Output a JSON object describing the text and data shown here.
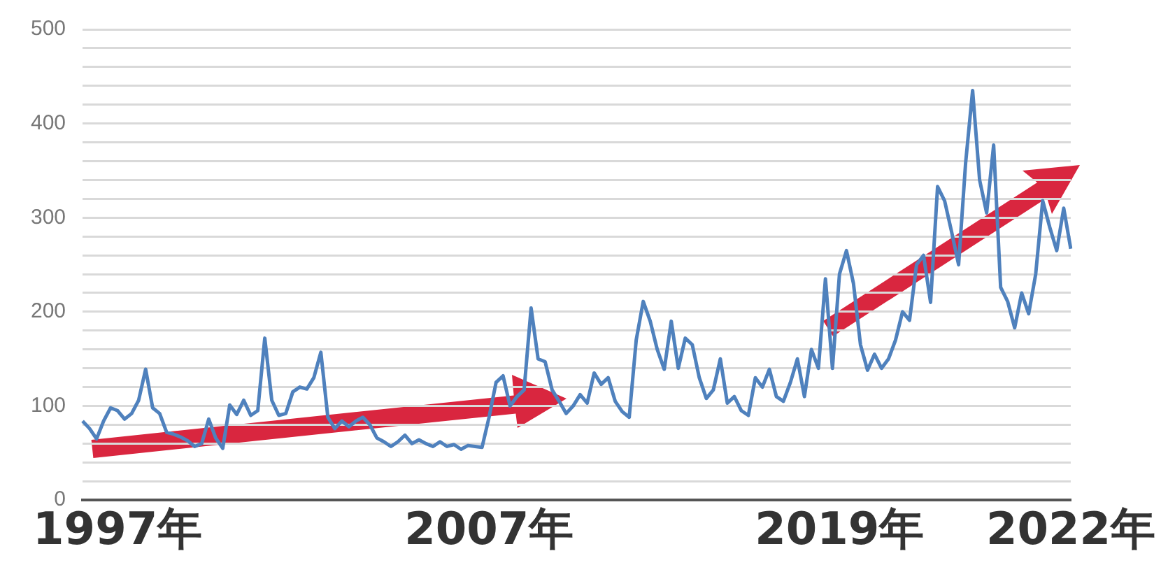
{
  "chart_data": {
    "type": "line",
    "categories": [
      null,
      null,
      null,
      null,
      null,
      "1997年",
      null,
      null,
      null,
      null,
      null,
      null,
      null,
      null,
      null,
      null,
      null,
      null,
      null,
      null,
      null,
      null,
      null,
      null,
      null,
      null,
      null,
      null,
      null,
      null,
      null,
      null,
      null,
      null,
      null,
      null,
      null,
      null,
      null,
      null,
      null,
      null,
      null,
      null,
      null,
      null,
      null,
      null,
      null,
      null,
      null,
      null,
      null,
      null,
      null,
      null,
      null,
      null,
      "2007年",
      null,
      null,
      null,
      null,
      null,
      null,
      null,
      null,
      null,
      null,
      null,
      null,
      null,
      null,
      null,
      null,
      null,
      null,
      null,
      null,
      null,
      null,
      null,
      null,
      null,
      null,
      null,
      null,
      null,
      null,
      null,
      null,
      null,
      null,
      null,
      null,
      null,
      null,
      null,
      null,
      null,
      null,
      null,
      null,
      null,
      null,
      null,
      null,
      null,
      "2019年",
      null,
      null,
      null,
      null,
      null,
      null,
      null,
      null,
      null,
      null,
      null,
      null,
      null,
      null,
      null,
      null,
      null,
      null,
      null,
      null,
      null,
      null,
      null,
      null,
      null,
      null,
      null,
      null,
      null,
      null,
      null,
      null,
      "2022年"
    ],
    "series": [
      {
        "color": "#4f81bd",
        "values": [
          84,
          76,
          65,
          84,
          98,
          95,
          86,
          92,
          106,
          139,
          98,
          92,
          72,
          70,
          67,
          63,
          57,
          60,
          86,
          66,
          55,
          101,
          91,
          106,
          90,
          95,
          172,
          106,
          90,
          92,
          115,
          120,
          118,
          130,
          157,
          88,
          76,
          84,
          78,
          84,
          88,
          80,
          66,
          62,
          57,
          62,
          69,
          60,
          64,
          60,
          57,
          62,
          57,
          59,
          54,
          58,
          57,
          56,
          88,
          125,
          132,
          100,
          110,
          117,
          204,
          150,
          147,
          117,
          105,
          92,
          100,
          112,
          103,
          135,
          123,
          130,
          105,
          94,
          88,
          170,
          211,
          190,
          160,
          139,
          190,
          140,
          172,
          165,
          130,
          108,
          117,
          150,
          103,
          110,
          95,
          90,
          130,
          120,
          139,
          110,
          105,
          125,
          150,
          110,
          160,
          140,
          235,
          140,
          240,
          265,
          230,
          165,
          138,
          155,
          140,
          150,
          170,
          200,
          191,
          250,
          260,
          210,
          333,
          318,
          285,
          250,
          358,
          435,
          340,
          305,
          377,
          226,
          211,
          183,
          220,
          198,
          240,
          318,
          290,
          265,
          310,
          267
        ]
      }
    ],
    "ylim": [
      0,
      500
    ],
    "yticks": [
      0,
      {
        "value": 20,
        "label": null
      },
      {
        "value": 40,
        "label": null
      },
      {
        "value": 60,
        "label": null
      },
      {
        "value": 80,
        "label": null
      },
      100,
      {
        "value": 120,
        "label": null
      },
      {
        "value": 140,
        "label": null
      },
      {
        "value": 160,
        "label": null
      },
      {
        "value": 180,
        "label": null
      },
      200,
      {
        "value": 220,
        "label": null
      },
      {
        "value": 240,
        "label": null
      },
      {
        "value": 260,
        "label": null
      },
      {
        "value": 280,
        "label": null
      },
      300,
      {
        "value": 320,
        "label": null
      },
      {
        "value": 340,
        "label": null
      },
      {
        "value": 360,
        "label": null
      },
      {
        "value": 380,
        "label": null
      },
      400,
      {
        "value": 420,
        "label": null
      },
      {
        "value": 440,
        "label": null
      },
      {
        "value": 460,
        "label": null
      },
      {
        "value": 480,
        "label": null
      },
      500
    ],
    "grid": "y",
    "legend": false,
    "marker": "none",
    "line_style": "solid"
  }
}
